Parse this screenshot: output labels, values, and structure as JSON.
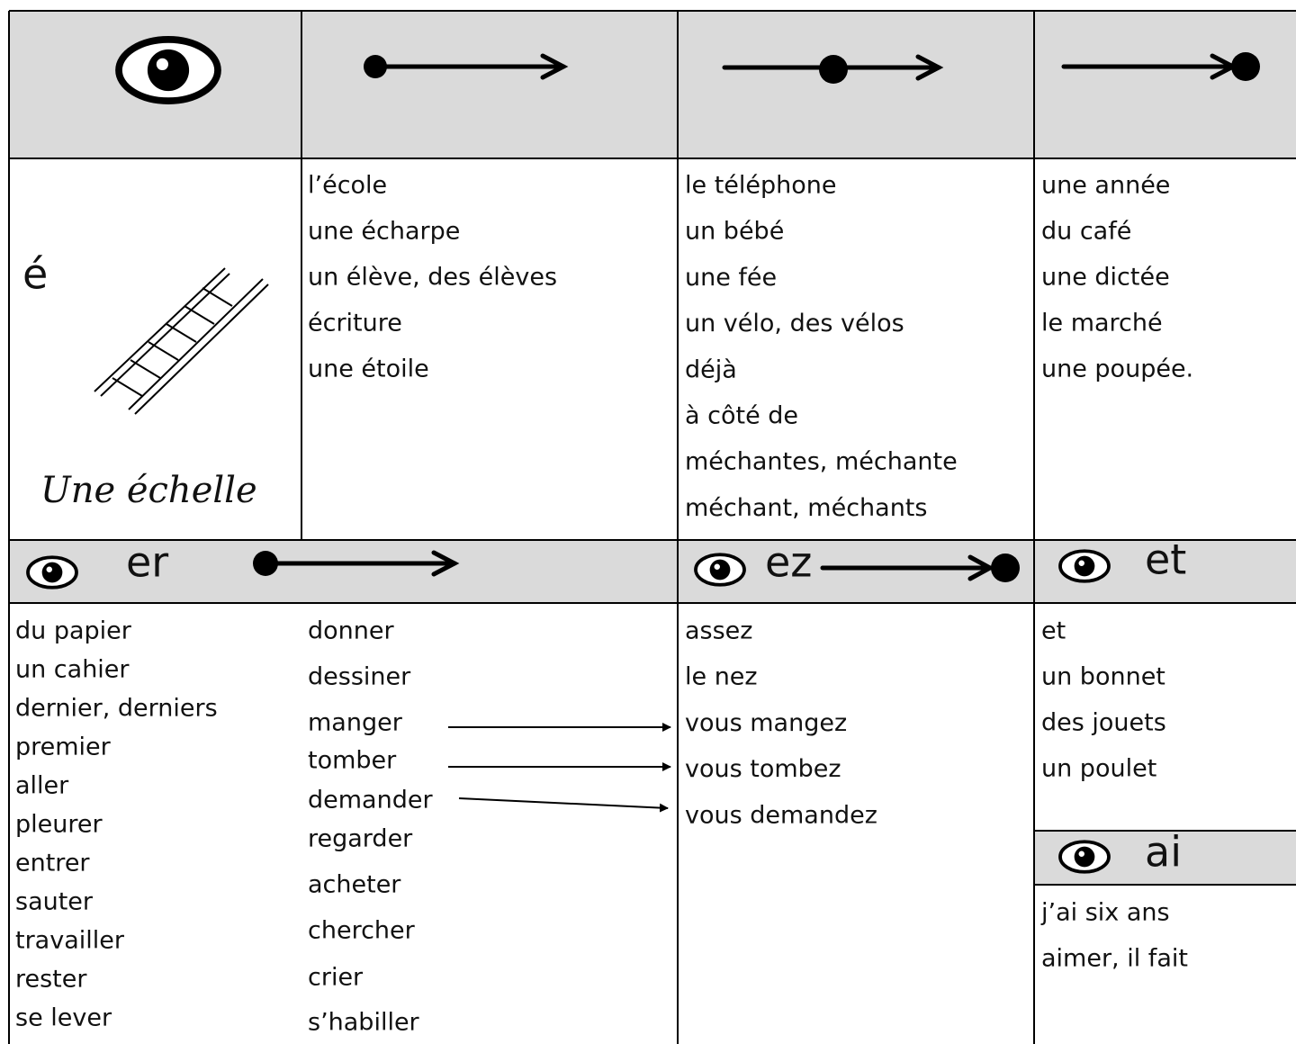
{
  "e_acute": {
    "letter": "é",
    "image_caption": "Une échelle",
    "start": [
      "l’école",
      "une écharpe",
      "un élève, des élèves",
      "écriture",
      "une étoile"
    ],
    "middle": [
      "le téléphone",
      "un bébé",
      "une fée",
      "un vélo, des vélos",
      "déjà",
      "à côté de",
      "méchantes, méchante",
      "méchant, méchants"
    ],
    "end": [
      "une année",
      "du café",
      "une dictée",
      "le marché",
      "une poupée."
    ]
  },
  "er": {
    "label": "er",
    "words_left": [
      "du papier",
      "un cahier",
      "dernier, derniers",
      "premier",
      "aller",
      "pleurer",
      "entrer",
      "sauter",
      "travailler",
      "rester",
      "se lever"
    ],
    "words_right": [
      "donner",
      "dessiner",
      "manger",
      "tomber",
      "demander",
      "regarder",
      "acheter",
      "chercher",
      "crier",
      "s’habiller"
    ]
  },
  "ez": {
    "label": "ez",
    "words": [
      "assez",
      "le nez",
      "vous mangez",
      "vous tombez",
      "vous demandez"
    ]
  },
  "et": {
    "label": "et",
    "words": [
      "et",
      "un bonnet",
      "des jouets",
      "un poulet"
    ]
  },
  "ai": {
    "label": "ai",
    "words": [
      "j’ai six ans",
      "aimer, il fait"
    ]
  }
}
